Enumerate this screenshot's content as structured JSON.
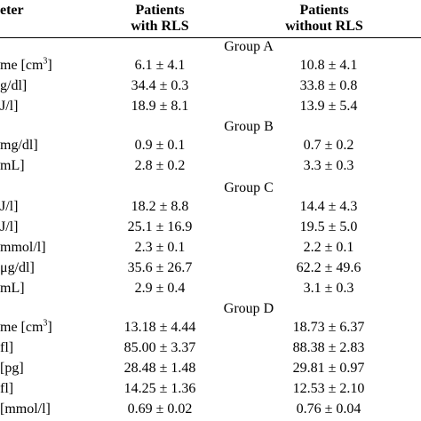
{
  "header": {
    "parameter": "eter",
    "with_rls_line1": "Patients",
    "with_rls_line2": "with RLS",
    "without_rls_line1": "Patients",
    "without_rls_line2": "without RLS"
  },
  "groups": [
    {
      "name": "Group A",
      "rows": [
        {
          "parameter": "me [cm",
          "parameter_sup": "3",
          "parameter_tail": "]",
          "with_rls": "6.1 ± 4.1",
          "without_rls": "10.8 ± 4.1"
        },
        {
          "parameter": "g/dl]",
          "parameter_sup": "",
          "parameter_tail": "",
          "with_rls": "34.4 ± 0.3",
          "without_rls": "33.8 ± 0.8"
        },
        {
          "parameter": "J/l]",
          "parameter_sup": "",
          "parameter_tail": "",
          "with_rls": "18.9 ± 8.1",
          "without_rls": "13.9 ± 5.4"
        }
      ]
    },
    {
      "name": "Group B",
      "rows": [
        {
          "parameter": " mg/dl]",
          "parameter_sup": "",
          "parameter_tail": "",
          "with_rls": "0.9 ± 0.1",
          "without_rls": "0.7 ± 0.2"
        },
        {
          "parameter": "mL]",
          "parameter_sup": "",
          "parameter_tail": "",
          "with_rls": "2.8 ± 0.2",
          "without_rls": "3.3 ± 0.3"
        }
      ]
    },
    {
      "name": "Group C",
      "rows": [
        {
          "parameter": "J/l]",
          "parameter_sup": "",
          "parameter_tail": "",
          "with_rls": "18.2 ± 8.8",
          "without_rls": "14.4 ± 4.3"
        },
        {
          "parameter": "J/l]",
          "parameter_sup": "",
          "parameter_tail": "",
          "with_rls": "25.1 ± 16.9",
          "without_rls": "19.5 ± 5.0"
        },
        {
          "parameter": "mmol/l]",
          "parameter_sup": "",
          "parameter_tail": "",
          "with_rls": "2.3 ± 0.1",
          "without_rls": "2.2 ± 0.1"
        },
        {
          "parameter": "μg/dl]",
          "parameter_sup": "",
          "parameter_tail": "",
          "with_rls": "35.6 ± 26.7",
          "without_rls": "62.2 ± 49.6"
        },
        {
          "parameter": "mL]",
          "parameter_sup": "",
          "parameter_tail": "",
          "with_rls": "2.9 ± 0.4",
          "without_rls": "3.1 ± 0.3"
        }
      ]
    },
    {
      "name": "Group D",
      "rows": [
        {
          "parameter": "me [cm",
          "parameter_sup": "3",
          "parameter_tail": "]",
          "with_rls": "13.18 ± 4.44",
          "without_rls": "18.73 ± 6.37"
        },
        {
          "parameter": " fl]",
          "parameter_sup": "",
          "parameter_tail": "",
          "with_rls": "85.00 ± 3.37",
          "without_rls": "88.38 ± 2.83"
        },
        {
          "parameter": "[pg]",
          "parameter_sup": "",
          "parameter_tail": "",
          "with_rls": "28.48 ± 1.48",
          "without_rls": "29.81 ± 0.97"
        },
        {
          "parameter": " fl]",
          "parameter_sup": "",
          "parameter_tail": "",
          "with_rls": "14.25 ± 1.36",
          "without_rls": "12.53 ± 2.10"
        },
        {
          "parameter": "[mmol/l]",
          "parameter_sup": "",
          "parameter_tail": "",
          "with_rls": "0.69 ± 0.02",
          "without_rls": "0.76 ± 0.04"
        }
      ]
    }
  ]
}
